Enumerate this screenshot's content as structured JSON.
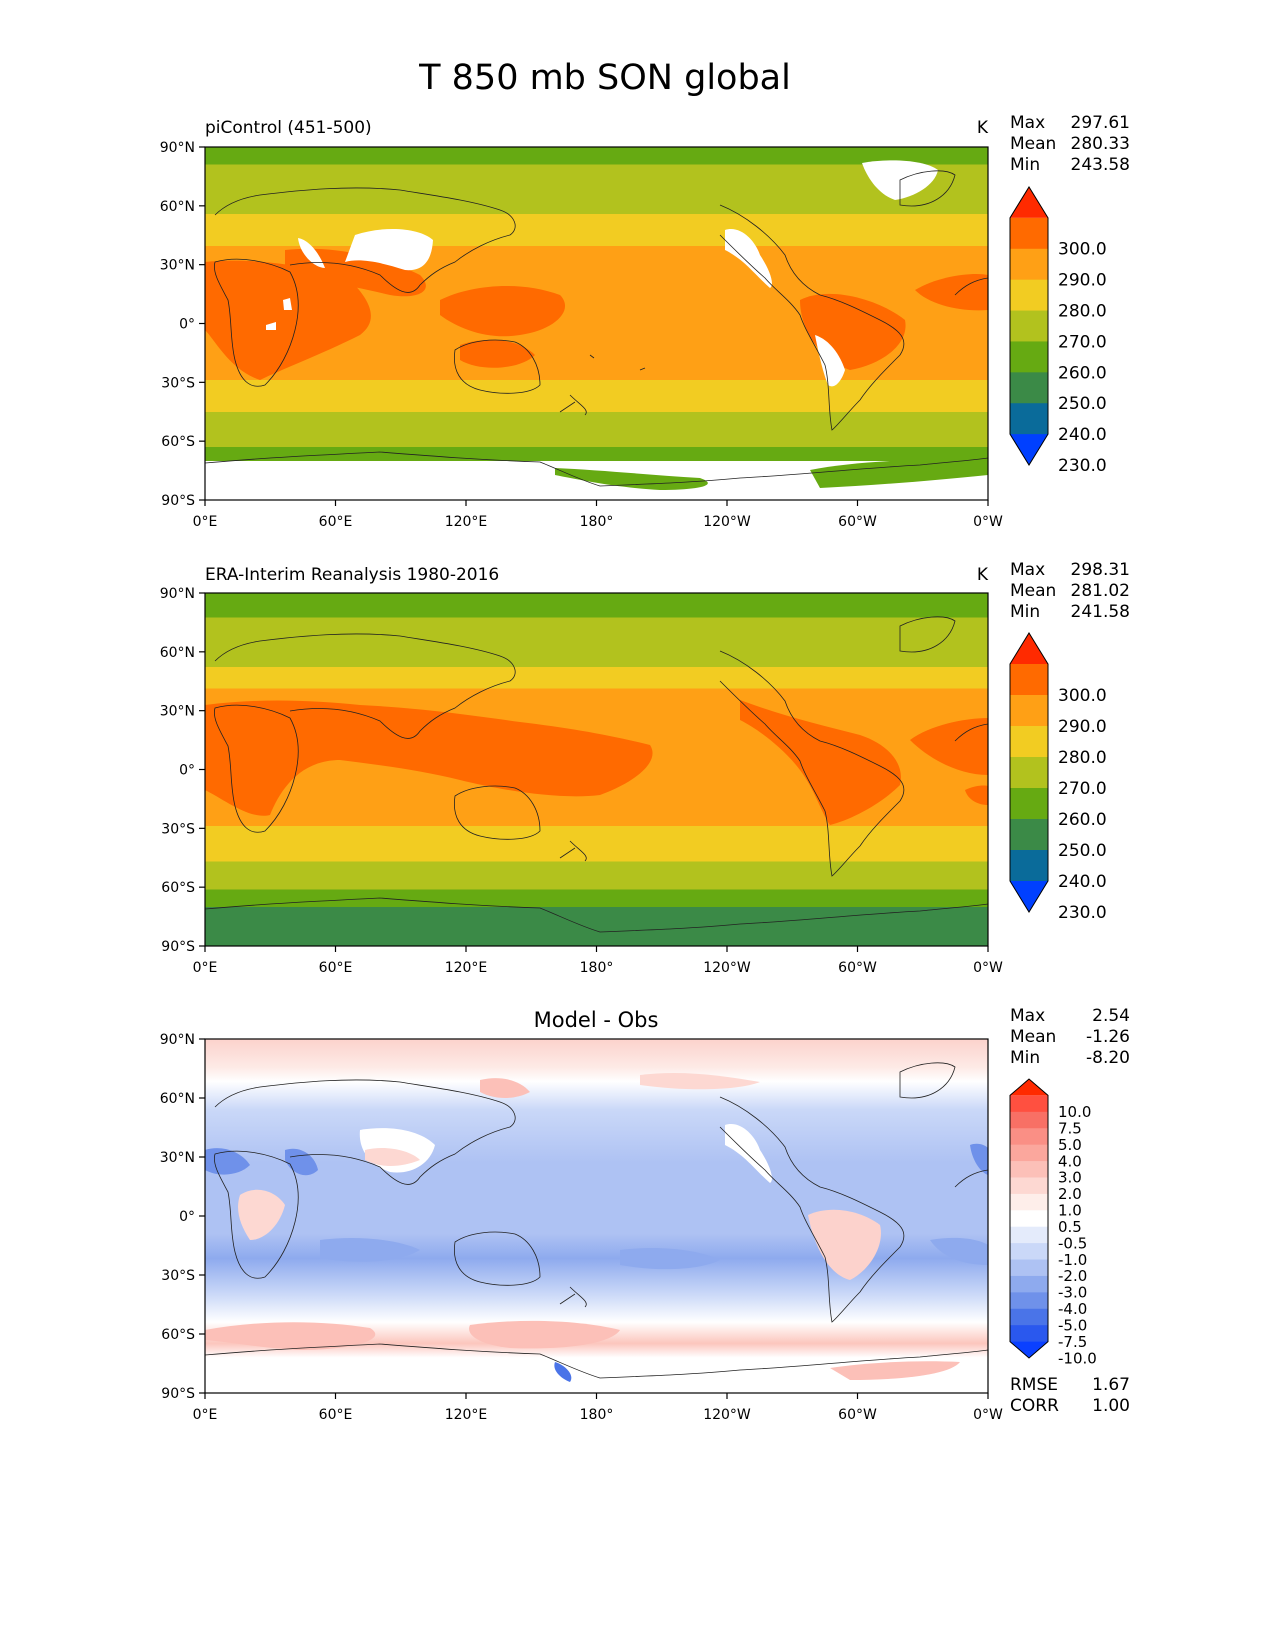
{
  "figure": {
    "title": "T 850 mb SON global"
  },
  "axes": {
    "yticks": [
      "90°N",
      "60°N",
      "30°N",
      "0°",
      "30°S",
      "60°S",
      "90°S"
    ],
    "xticks": [
      "0°E",
      "60°E",
      "120°E",
      "180°",
      "120°W",
      "60°W",
      "0°W"
    ]
  },
  "panels": [
    {
      "id": "test",
      "left_title": "piControl (451-500)",
      "center_title": "",
      "units": "K",
      "stats": [
        {
          "label": "Max",
          "value": "297.61"
        },
        {
          "label": "Mean",
          "value": "280.33"
        },
        {
          "label": "Min",
          "value": "243.58"
        }
      ],
      "colorbar": {
        "labels": [
          "300.0",
          "290.0",
          "280.0",
          "270.0",
          "260.0",
          "250.0",
          "240.0",
          "230.0"
        ],
        "colors": [
          "#ff2a00",
          "#ff6a00",
          "#ffa015",
          "#f2cc22",
          "#b2c21e",
          "#66aa12",
          "#3b8a47",
          "#0a6b9a",
          "#0040ff"
        ]
      },
      "footer_stats": []
    },
    {
      "id": "reference",
      "left_title": "ERA-Interim Reanalysis 1980-2016",
      "center_title": "",
      "units": "K",
      "stats": [
        {
          "label": "Max",
          "value": "298.31"
        },
        {
          "label": "Mean",
          "value": "281.02"
        },
        {
          "label": "Min",
          "value": "241.58"
        }
      ],
      "colorbar": {
        "labels": [
          "300.0",
          "290.0",
          "280.0",
          "270.0",
          "260.0",
          "250.0",
          "240.0",
          "230.0"
        ],
        "colors": [
          "#ff2a00",
          "#ff6a00",
          "#ffa015",
          "#f2cc22",
          "#b2c21e",
          "#66aa12",
          "#3b8a47",
          "#0a6b9a",
          "#0040ff"
        ]
      },
      "footer_stats": []
    },
    {
      "id": "diff",
      "left_title": "",
      "center_title": "Model - Obs",
      "units": "",
      "stats": [
        {
          "label": "Max",
          "value": "2.54"
        },
        {
          "label": "Mean",
          "value": "-1.26"
        },
        {
          "label": "Min",
          "value": "-8.20"
        }
      ],
      "colorbar": {
        "labels": [
          "10.0",
          "7.5",
          "5.0",
          "4.0",
          "3.0",
          "2.0",
          "1.0",
          "0.5",
          "-0.5",
          "-1.0",
          "-2.0",
          "-3.0",
          "-4.0",
          "-5.0",
          "-7.5",
          "-10.0"
        ],
        "colors": [
          "#ff2a00",
          "#ff5040",
          "#f87065",
          "#fa8f85",
          "#fba79d",
          "#fcc0b8",
          "#fdd8d2",
          "#feeeea",
          "#ffffff",
          "#e4ebfb",
          "#cad8f8",
          "#aec2f3",
          "#8eaaee",
          "#6f91ea",
          "#4a74e8",
          "#2a58ee",
          "#0a40ff"
        ]
      },
      "footer_stats": [
        {
          "label": "RMSE",
          "value": "1.67"
        },
        {
          "label": "CORR",
          "value": "1.00"
        }
      ]
    }
  ]
}
